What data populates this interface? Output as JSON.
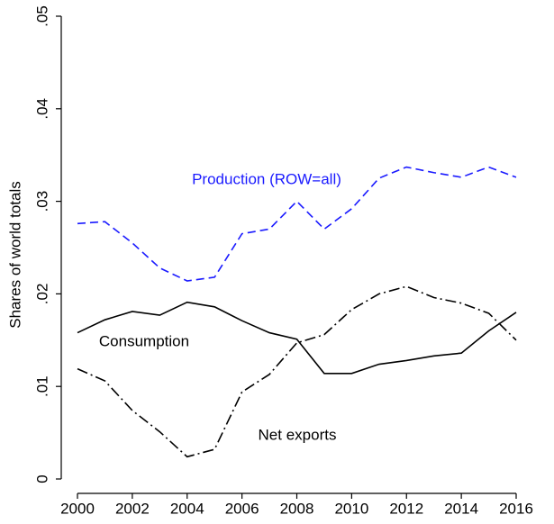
{
  "chart_data": {
    "type": "line",
    "y_label": "Shares of world totals",
    "x": [
      2000,
      2001,
      2002,
      2003,
      2004,
      2005,
      2006,
      2007,
      2008,
      2009,
      2010,
      2011,
      2012,
      2013,
      2014,
      2015,
      2016
    ],
    "xlim": [
      2000,
      2016
    ],
    "xticks": [
      2000,
      2002,
      2004,
      2006,
      2008,
      2010,
      2012,
      2014,
      2016
    ],
    "ylim": [
      0,
      0.05
    ],
    "yticks": [
      0,
      {
        "value": 0.01,
        "label": ".01"
      },
      {
        "value": 0.02,
        "label": ".02"
      },
      {
        "value": 0.03,
        "label": ".03"
      },
      {
        "value": 0.04,
        "label": ".04"
      },
      {
        "value": 0.05,
        "label": ".05"
      }
    ],
    "series": [
      {
        "name": "Production (ROW=all)",
        "color": "#1a1aff",
        "style": "dashed",
        "values": [
          0.0276,
          0.0278,
          0.0255,
          0.0228,
          0.0214,
          0.0218,
          0.0265,
          0.027,
          0.03,
          0.027,
          0.0292,
          0.0325,
          0.0337,
          0.0331,
          0.0326,
          0.0337,
          0.0326
        ]
      },
      {
        "name": "Consumption",
        "color": "#000000",
        "style": "solid",
        "values": [
          0.0158,
          0.0172,
          0.0181,
          0.0177,
          0.0191,
          0.0186,
          0.0171,
          0.0158,
          0.0151,
          0.0114,
          0.0114,
          0.0124,
          0.0128,
          0.0133,
          0.0136,
          0.016,
          0.018
        ]
      },
      {
        "name": "Net exports",
        "color": "#000000",
        "style": "dashdot",
        "values": [
          0.0119,
          0.0106,
          0.0074,
          0.0051,
          0.0024,
          0.0032,
          0.0094,
          0.0113,
          0.0147,
          0.0156,
          0.0183,
          0.02,
          0.0208,
          0.0196,
          0.019,
          0.0179,
          0.015
        ]
      }
    ]
  }
}
